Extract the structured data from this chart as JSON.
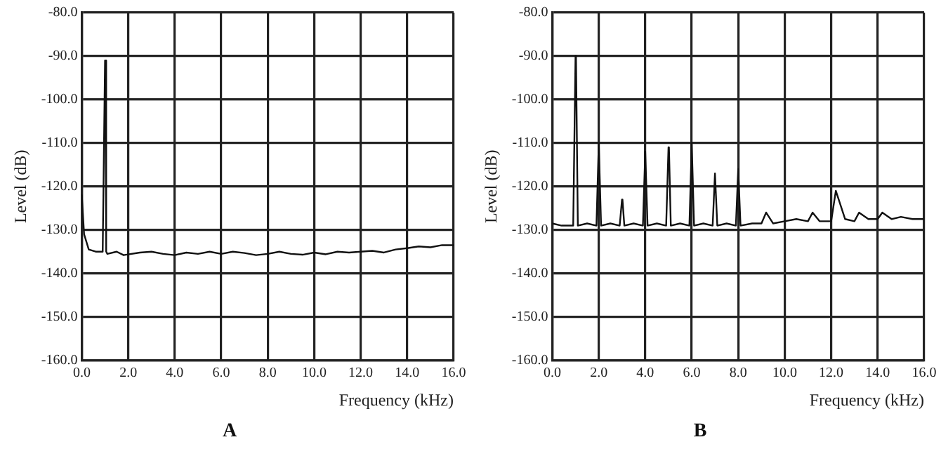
{
  "chart_data": [
    {
      "type": "line",
      "title": "A",
      "xlabel": "Frequency (kHz)",
      "ylabel": "Level (dB)",
      "xlim": [
        0,
        16
      ],
      "ylim": [
        -160,
        -80
      ],
      "grid": true,
      "legend": false,
      "marker": "none",
      "line_style": "solid",
      "xticks": [
        {
          "value": 0,
          "label": "0.0"
        },
        {
          "value": 2,
          "label": "2.0"
        },
        {
          "value": 4,
          "label": "4.0"
        },
        {
          "value": 6,
          "label": "6.0"
        },
        {
          "value": 8,
          "label": "8.0"
        },
        {
          "value": 10,
          "label": "10.0"
        },
        {
          "value": 12,
          "label": "12.0"
        },
        {
          "value": 14,
          "label": "14.0"
        },
        {
          "value": 16,
          "label": "16.0"
        }
      ],
      "yticks": [
        {
          "value": -80,
          "label": "-80.0"
        },
        {
          "value": -90,
          "label": "-90.0"
        },
        {
          "value": -100,
          "label": "-100.0"
        },
        {
          "value": -110,
          "label": "-110.0"
        },
        {
          "value": -120,
          "label": "-120.0"
        },
        {
          "value": -130,
          "label": "-130.0"
        },
        {
          "value": -140,
          "label": "-140.0"
        },
        {
          "value": -150,
          "label": "-150.0"
        },
        {
          "value": -160,
          "label": "-160.0"
        }
      ],
      "series": [
        {
          "color": "#111111",
          "x": [
            0,
            0.1,
            0.3,
            0.6,
            0.9,
            0.95,
            1.0,
            1.02,
            1.05,
            1.1,
            1.5,
            1.8,
            2.5,
            3,
            3.5,
            4,
            4.5,
            5,
            5.5,
            6,
            6.5,
            7,
            7.5,
            8,
            8.5,
            9,
            9.5,
            10,
            10.5,
            11,
            11.5,
            12,
            12.5,
            13,
            13.5,
            14,
            14.5,
            15,
            15.5,
            16
          ],
          "values": [
            -122,
            -131,
            -134.5,
            -135,
            -135,
            -135,
            -91,
            -91,
            -135,
            -135.5,
            -135,
            -135.8,
            -135.2,
            -135,
            -135.5,
            -135.8,
            -135.2,
            -135.5,
            -135,
            -135.5,
            -135,
            -135.3,
            -135.8,
            -135.5,
            -135,
            -135.5,
            -135.7,
            -135.2,
            -135.6,
            -135,
            -135.2,
            -135,
            -134.8,
            -135.2,
            -134.5,
            -134.2,
            -133.8,
            -134,
            -133.5,
            -133.5
          ]
        }
      ]
    },
    {
      "type": "line",
      "title": "B",
      "xlabel": "Frequency (kHz)",
      "ylabel": "Level (dB)",
      "xlim": [
        0,
        16
      ],
      "ylim": [
        -160,
        -80
      ],
      "grid": true,
      "legend": false,
      "marker": "none",
      "line_style": "solid",
      "xticks": [
        {
          "value": 0,
          "label": "0.0"
        },
        {
          "value": 2,
          "label": "2.0"
        },
        {
          "value": 4,
          "label": "4.0"
        },
        {
          "value": 6,
          "label": "6.0"
        },
        {
          "value": 8,
          "label": "8.0"
        },
        {
          "value": 10,
          "label": "10.0"
        },
        {
          "value": 12,
          "label": "12.0"
        },
        {
          "value": 14,
          "label": "14.0"
        },
        {
          "value": 16,
          "label": "16.0"
        }
      ],
      "yticks": [
        {
          "value": -80,
          "label": "-80.0"
        },
        {
          "value": -90,
          "label": "-90.0"
        },
        {
          "value": -100,
          "label": "-100.0"
        },
        {
          "value": -110,
          "label": "-110.0"
        },
        {
          "value": -120,
          "label": "-120.0"
        },
        {
          "value": -130,
          "label": "-130.0"
        },
        {
          "value": -140,
          "label": "-140.0"
        },
        {
          "value": -150,
          "label": "-150.0"
        },
        {
          "value": -160,
          "label": "-160.0"
        }
      ],
      "series": [
        {
          "color": "#111111",
          "x": [
            0,
            0.4,
            0.9,
            1.0,
            1.02,
            1.1,
            1.5,
            1.9,
            2.0,
            2.02,
            2.1,
            2.5,
            2.9,
            3.0,
            3.02,
            3.1,
            3.5,
            3.9,
            4.0,
            4.02,
            4.1,
            4.5,
            4.9,
            5.0,
            5.02,
            5.1,
            5.5,
            5.9,
            6.0,
            6.02,
            6.1,
            6.5,
            6.9,
            7.0,
            7.02,
            7.1,
            7.5,
            7.9,
            8.0,
            8.02,
            8.1,
            8.6,
            9.0,
            9.2,
            9.5,
            10.0,
            10.5,
            11.0,
            11.2,
            11.5,
            12.0,
            12.2,
            12.25,
            12.6,
            13.0,
            13.2,
            13.6,
            14.0,
            14.2,
            14.6,
            15.0,
            15.5,
            16
          ],
          "values": [
            -128.5,
            -129,
            -129,
            -90,
            -90,
            -129,
            -128.5,
            -129,
            -110,
            -110,
            -129,
            -128.5,
            -129,
            -123,
            -123,
            -129,
            -128.5,
            -129,
            -112,
            -112,
            -129,
            -128.5,
            -129,
            -111,
            -111,
            -129,
            -128.5,
            -129,
            -110,
            -110,
            -129,
            -128.5,
            -129,
            -117,
            -117,
            -129,
            -128.5,
            -129,
            -116,
            -116,
            -129,
            -128.5,
            -128.5,
            -126,
            -128.5,
            -128,
            -127.5,
            -128,
            -126,
            -128,
            -128,
            -121,
            -121,
            -127.5,
            -128,
            -126,
            -127.5,
            -127.5,
            -126,
            -127.5,
            -127,
            -127.5,
            -127.5
          ]
        }
      ]
    }
  ]
}
